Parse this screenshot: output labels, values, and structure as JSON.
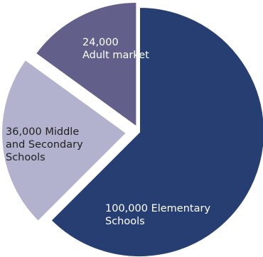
{
  "chart_data": {
    "type": "pie",
    "title": "",
    "slices": [
      {
        "value": 100000,
        "label_lines": [
          "100,000 Elementary",
          "Schools"
        ],
        "color": "#273e72",
        "text_color": "#ffffff"
      },
      {
        "value": 36000,
        "label_lines": [
          "36,000 Middle",
          "and Secondary",
          "Schools"
        ],
        "color": "#b3b2ce",
        "text_color": "#1f1f1f"
      },
      {
        "value": 24000,
        "label_lines": [
          "24,000",
          "Adult market"
        ],
        "color": "#625f8b",
        "text_color": "#ffffff"
      }
    ]
  }
}
